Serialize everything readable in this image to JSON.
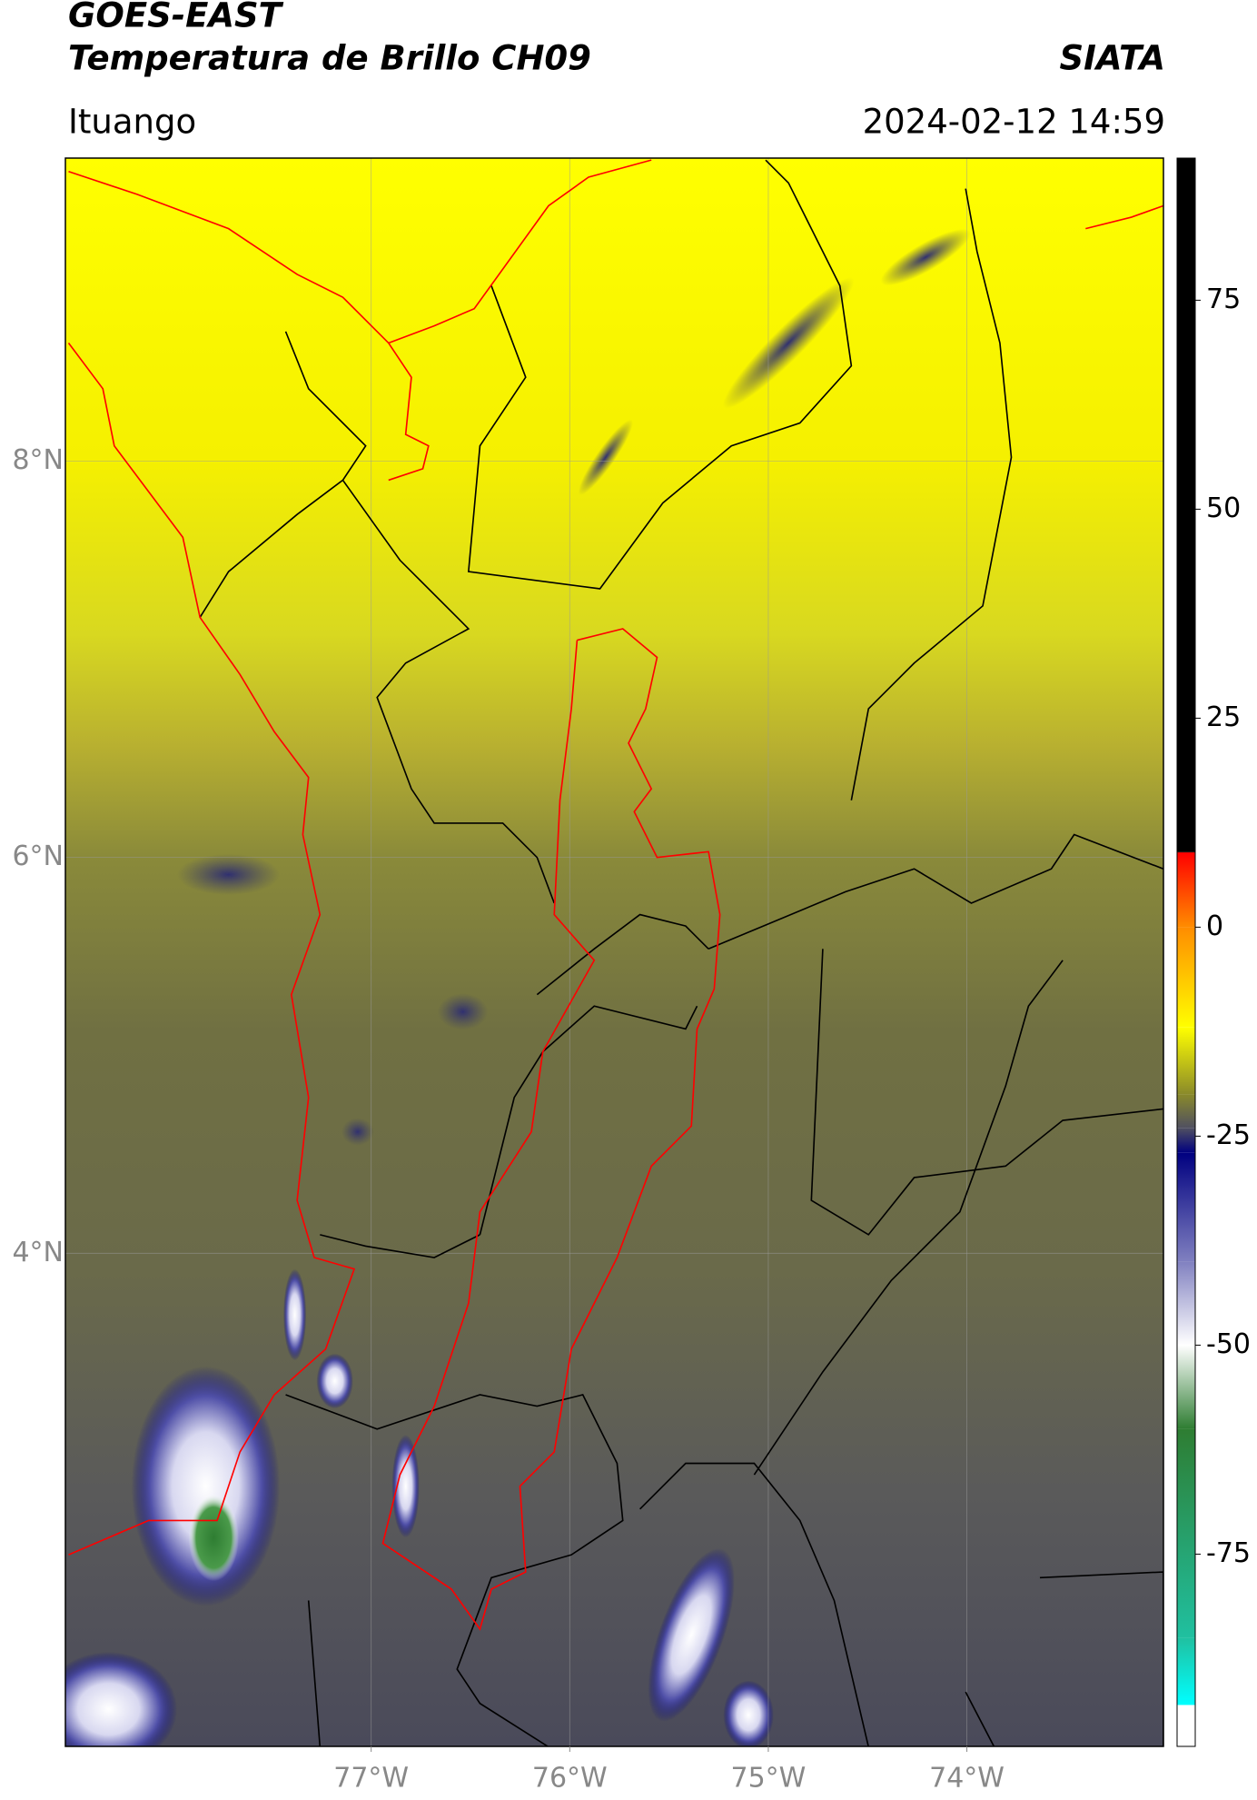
{
  "header": {
    "title": "GOES-EAST",
    "subtitle": "Temperatura de Brillo CH09",
    "source": "SIATA",
    "region": "Ituango",
    "timestamp": "2024-02-12 14:59"
  },
  "map": {
    "xlim": [
      -78.54,
      -73.01
    ],
    "ylim": [
      1.51,
      9.53
    ],
    "xticks": [
      {
        "value": -77,
        "label": "77°W"
      },
      {
        "value": -76,
        "label": "76°W"
      },
      {
        "value": -75,
        "label": "75°W"
      },
      {
        "value": -74,
        "label": "74°W"
      }
    ],
    "yticks": [
      {
        "value": 8,
        "label": "8°N"
      },
      {
        "value": 6,
        "label": "6°N"
      },
      {
        "value": 4,
        "label": "4°N"
      }
    ],
    "grid": true
  },
  "colorbar": {
    "ylim": [
      -98,
      92
    ],
    "yticks": [
      75,
      50,
      25,
      0,
      -25,
      -50,
      -75
    ],
    "stops": [
      {
        "value": 92,
        "color": "#000000"
      },
      {
        "value": 9,
        "color": "#000000"
      },
      {
        "value": 8.9,
        "color": "#ff0000"
      },
      {
        "value": 0,
        "color": "#ff8c00"
      },
      {
        "value": -12,
        "color": "#ffff00"
      },
      {
        "value": -20,
        "color": "#8a8a2a"
      },
      {
        "value": -24,
        "color": "#505060"
      },
      {
        "value": -27,
        "color": "#000080"
      },
      {
        "value": -40,
        "color": "#8080c0"
      },
      {
        "value": -50,
        "color": "#ffffff"
      },
      {
        "value": -60,
        "color": "#2e7d32"
      },
      {
        "value": -85,
        "color": "#20c0a0"
      },
      {
        "value": -93,
        "color": "#00ffff"
      },
      {
        "value": -93.1,
        "color": "#ffffff"
      },
      {
        "value": -98,
        "color": "#ffffff"
      }
    ]
  }
}
